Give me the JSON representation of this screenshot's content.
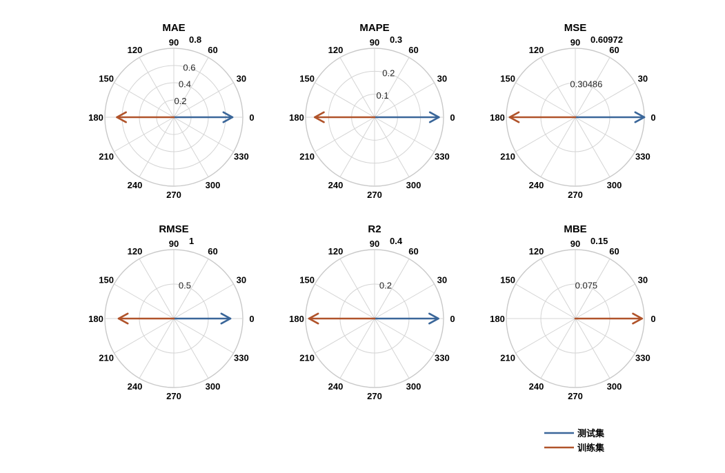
{
  "chart_data": {
    "type": "polar",
    "theta_ticks": [
      "0",
      "30",
      "60",
      "90",
      "120",
      "150",
      "180",
      "210",
      "240",
      "270",
      "300",
      "330"
    ],
    "legend": [
      {
        "name": "测试集",
        "color": "#3a6699"
      },
      {
        "name": "训练集",
        "color": "#b0532a"
      }
    ],
    "panels": [
      {
        "title": "MAE",
        "rmax": 0.8,
        "r_ticks": [
          "0.2",
          "0.4",
          "0.6",
          "0.8"
        ],
        "arrows": [
          {
            "series": "测试集",
            "theta": 0,
            "r": 0.68
          },
          {
            "series": "训练集",
            "theta": 180,
            "r": 0.66
          }
        ]
      },
      {
        "title": "MAPE",
        "rmax": 0.3,
        "r_ticks": [
          "0.1",
          "0.2",
          "0.3"
        ],
        "arrows": [
          {
            "series": "测试集",
            "theta": 0,
            "r": 0.28
          },
          {
            "series": "训练集",
            "theta": 180,
            "r": 0.26
          }
        ]
      },
      {
        "title": "MSE",
        "rmax": 0.60972,
        "r_ticks": [
          "0.30486",
          "0.60972"
        ],
        "arrows": [
          {
            "series": "测试集",
            "theta": 0,
            "r": 0.60972
          },
          {
            "series": "训练集",
            "theta": 180,
            "r": 0.58
          }
        ]
      },
      {
        "title": "RMSE",
        "rmax": 1,
        "r_ticks": [
          "0.5",
          "1"
        ],
        "arrows": [
          {
            "series": "测试集",
            "theta": 0,
            "r": 0.82
          },
          {
            "series": "训练集",
            "theta": 180,
            "r": 0.8
          }
        ]
      },
      {
        "title": "R2",
        "rmax": 0.4,
        "r_ticks": [
          "0.2",
          "0.4"
        ],
        "arrows": [
          {
            "series": "测试集",
            "theta": 0,
            "r": 0.37
          },
          {
            "series": "训练集",
            "theta": 180,
            "r": 0.38
          }
        ]
      },
      {
        "title": "MBE",
        "rmax": 0.15,
        "r_ticks": [
          "0.075",
          "0.15"
        ],
        "arrows": [
          {
            "series": "测试集",
            "theta": 0,
            "r": 0.0
          },
          {
            "series": "训练集",
            "theta": 0,
            "r": 0.145
          }
        ]
      }
    ]
  }
}
